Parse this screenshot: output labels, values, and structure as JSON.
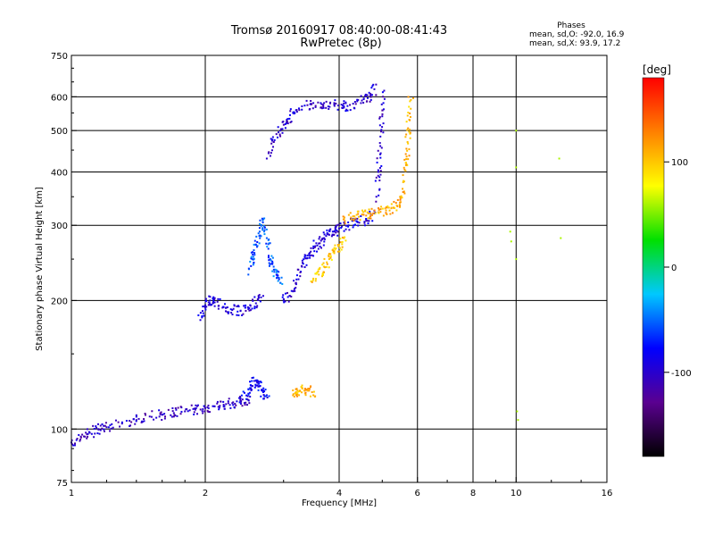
{
  "chart_data": {
    "type": "scatter",
    "title": "Tromsø 20160917 08:40:00-08:41:43",
    "subtitle": "RwPretec (8p)",
    "xlabel": "Frequency [MHz]",
    "ylabel": "Stationary phase Virtual Height [km]",
    "xscale": "log",
    "yscale": "log",
    "xlim": [
      1,
      16
    ],
    "ylim": [
      75,
      750
    ],
    "x_ticks": [
      1,
      2,
      4,
      6,
      8,
      10,
      16
    ],
    "y_ticks": [
      75,
      100,
      200,
      300,
      400,
      500,
      600,
      750
    ],
    "grid": true,
    "phases_info": {
      "title": "Phases",
      "o_line": "mean, sd,O: -92.0, 16.9",
      "x_line": "mean, sd,X:  93.9, 17.2"
    },
    "colorbar": {
      "label": "[deg]",
      "range": [
        -180,
        180
      ],
      "ticks": [
        100,
        0,
        -100
      ],
      "colors": [
        "#000000",
        "#5a0090",
        "#0000ff",
        "#00c8ff",
        "#00e000",
        "#ffff00",
        "#ff8000",
        "#ff0000"
      ]
    },
    "series": [
      {
        "label": "o_e_layer",
        "x": [
          1.0,
          1.05,
          1.1,
          1.15,
          1.2,
          1.3,
          1.4,
          1.5,
          1.6,
          1.7,
          1.8,
          1.9,
          2.0,
          2.1,
          2.2,
          2.3,
          2.4,
          2.5
        ],
        "y": [
          93,
          96,
          98,
          100,
          101,
          103,
          105,
          107,
          108,
          109,
          110,
          111,
          112,
          113,
          114,
          115,
          116,
          117
        ],
        "phase": -105
      },
      {
        "label": "o_e_spread",
        "x": [
          2.4,
          2.5,
          2.55,
          2.6,
          2.65,
          2.7,
          2.75
        ],
        "y": [
          118,
          121,
          126,
          130,
          126,
          122,
          120
        ],
        "phase": -80
      },
      {
        "label": "o_f_layer_low",
        "x": [
          1.95,
          2.0,
          2.05,
          2.1,
          2.2,
          2.3,
          2.4,
          2.5,
          2.6,
          2.7
        ],
        "y": [
          180,
          195,
          200,
          198,
          193,
          190,
          189,
          191,
          197,
          205
        ],
        "phase": -95
      },
      {
        "label": "o_f_spread",
        "x": [
          2.5,
          2.55,
          2.6,
          2.65,
          2.7,
          2.75,
          2.8,
          2.85,
          2.9,
          2.95
        ],
        "y": [
          230,
          250,
          270,
          290,
          310,
          280,
          250,
          240,
          230,
          220
        ],
        "phase": -55
      },
      {
        "label": "o_f_mid",
        "x": [
          3.0,
          3.1,
          3.2,
          3.3,
          3.4,
          3.5,
          3.6,
          3.7,
          3.8,
          3.9,
          4.0,
          4.2,
          4.4,
          4.6,
          4.8
        ],
        "y": [
          200,
          205,
          220,
          240,
          255,
          265,
          272,
          280,
          285,
          290,
          295,
          300,
          305,
          310,
          320
        ],
        "phase": -95
      },
      {
        "label": "o_f_upper",
        "x": [
          2.75,
          2.85,
          2.95,
          3.05,
          3.15,
          3.3,
          3.5,
          3.7,
          3.9,
          4.1,
          4.3,
          4.5,
          4.7,
          4.8
        ],
        "y": [
          430,
          470,
          500,
          530,
          550,
          570,
          580,
          580,
          575,
          570,
          578,
          588,
          605,
          625
        ],
        "phase": -100
      },
      {
        "label": "o_f_cusp",
        "x": [
          4.85,
          4.9,
          4.95,
          5.0,
          5.05
        ],
        "y": [
          350,
          400,
          460,
          540,
          620
        ],
        "phase": -100
      },
      {
        "label": "x_e_layer",
        "x": [
          3.15,
          3.2,
          3.3,
          3.4,
          3.5
        ],
        "y": [
          120,
          122,
          125,
          123,
          120
        ],
        "phase": 110
      },
      {
        "label": "x_f_low",
        "x": [
          3.5,
          3.6,
          3.7,
          3.8,
          3.9,
          4.0,
          4.1
        ],
        "y": [
          225,
          230,
          240,
          250,
          260,
          270,
          280
        ],
        "phase": 100
      },
      {
        "label": "x_f_mid",
        "x": [
          4.1,
          4.3,
          4.5,
          4.7,
          4.9,
          5.1,
          5.3,
          5.5,
          5.6
        ],
        "y": [
          310,
          315,
          318,
          320,
          322,
          325,
          330,
          340,
          360
        ],
        "phase": 110
      },
      {
        "label": "x_f_cusp",
        "x": [
          5.6,
          5.65,
          5.7,
          5.75,
          5.8
        ],
        "y": [
          380,
          420,
          470,
          530,
          590
        ],
        "phase": 105
      },
      {
        "label": "sparse_10mhz",
        "x": [
          9.7,
          9.75,
          10.0,
          10.0,
          10.0,
          10.05,
          10.1,
          12.5,
          12.6
        ],
        "y": [
          290,
          275,
          500,
          410,
          250,
          110,
          105,
          430,
          280
        ],
        "phase": 60
      }
    ]
  }
}
